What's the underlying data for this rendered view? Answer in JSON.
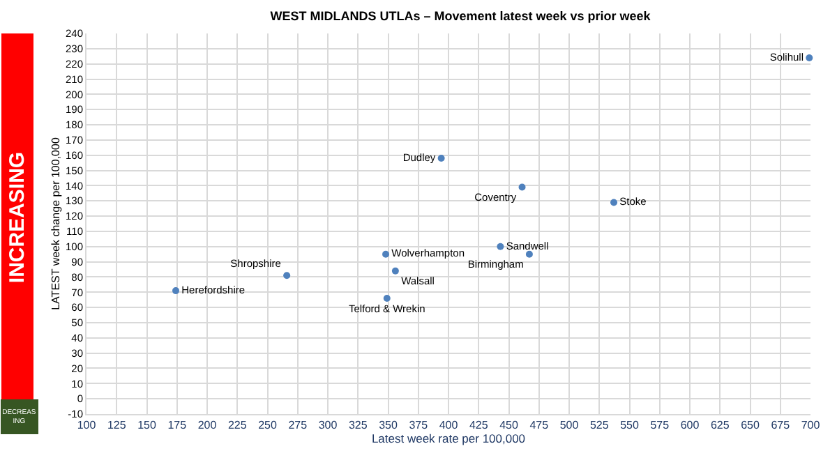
{
  "chart_data": {
    "type": "scatter",
    "title": "WEST MIDLANDS UTLAs – Movement latest week vs prior week",
    "xlabel": "Latest week rate per 100,000",
    "ylabel": "LATEST week change per 100,000",
    "x": [
      699,
      394,
      461,
      537,
      443,
      467,
      348,
      356,
      349,
      266,
      174
    ],
    "series": [
      {
        "color": "#4f81bd",
        "values": [
          224,
          158,
          139,
          129,
          100,
          95,
          95,
          84,
          66,
          81,
          71
        ],
        "value_labels": [
          "Solihull",
          "Dudley",
          "Coventry",
          "Stoke",
          "Sandwell",
          "Birmingham",
          "Wolverhampton",
          "Walsall",
          "Telford & Wrekin",
          "Shropshire",
          "Herefordshire"
        ]
      }
    ],
    "xlim": [
      100,
      700
    ],
    "xticks": [
      100,
      125,
      150,
      175,
      200,
      225,
      250,
      275,
      300,
      325,
      350,
      375,
      400,
      425,
      450,
      475,
      500,
      525,
      550,
      575,
      600,
      625,
      650,
      675,
      700
    ],
    "ylim": [
      -10,
      240
    ],
    "yticks": [
      -10,
      0,
      10,
      20,
      30,
      40,
      50,
      60,
      70,
      80,
      90,
      100,
      110,
      120,
      130,
      140,
      150,
      160,
      170,
      180,
      190,
      200,
      210,
      220,
      230,
      240
    ],
    "annotations": [
      "INCREASING",
      "DECREASING"
    ],
    "grid": true,
    "marker": "circle",
    "legend": false
  }
}
